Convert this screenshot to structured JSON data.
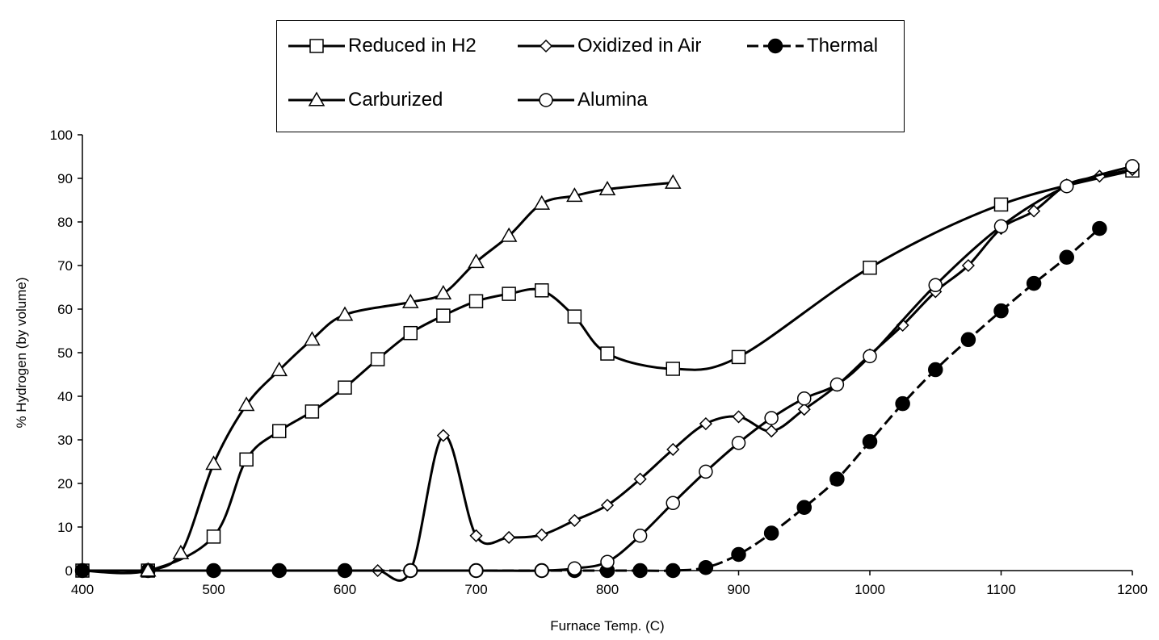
{
  "chart_data": {
    "type": "line",
    "title": "",
    "xlabel": "Furnace Temp. (C)",
    "ylabel": "% Hydrogen (by volume)",
    "xlim": [
      400,
      1200
    ],
    "ylim": [
      0,
      100
    ],
    "xticks": [
      400,
      500,
      600,
      700,
      800,
      900,
      1000,
      1100,
      1200
    ],
    "yticks": [
      0,
      10,
      20,
      30,
      40,
      50,
      60,
      70,
      80,
      90,
      100
    ],
    "grid": false,
    "legend_position": "top",
    "series": [
      {
        "name": "Reduced in H2",
        "marker": "square",
        "line": "solid",
        "color": "#000000",
        "x": [
          400,
          450,
          500,
          525,
          550,
          575,
          600,
          625,
          650,
          675,
          700,
          725,
          750,
          775,
          800,
          850,
          900,
          1000,
          1100,
          1200
        ],
        "y": [
          0,
          0,
          7.8,
          25.5,
          32,
          36.5,
          42,
          48.5,
          54.5,
          58.5,
          61.8,
          63.5,
          64.3,
          58.3,
          49.8,
          46.3,
          49,
          69.5,
          84,
          91.8
        ]
      },
      {
        "name": "Oxidized in Air",
        "marker": "diamond",
        "line": "solid",
        "color": "#000000",
        "x": [
          400,
          450,
          500,
          550,
          600,
          625,
          650,
          675,
          700,
          725,
          750,
          775,
          800,
          825,
          850,
          875,
          900,
          925,
          950,
          975,
          1000,
          1025,
          1050,
          1075,
          1100,
          1125,
          1150,
          1175,
          1200
        ],
        "y": [
          0,
          0,
          0,
          0,
          0,
          0,
          0,
          31,
          8,
          7.6,
          8.2,
          11.5,
          15,
          21,
          27.8,
          33.7,
          35.3,
          32,
          37,
          42.5,
          49.5,
          56.3,
          64,
          70,
          78.5,
          82.5,
          88.5,
          90.5,
          92
        ]
      },
      {
        "name": "Thermal",
        "marker": "filled-circle",
        "line": "dashed",
        "color": "#000000",
        "x": [
          400,
          450,
          500,
          550,
          600,
          650,
          700,
          750,
          775,
          800,
          825,
          850,
          875,
          900,
          925,
          950,
          975,
          1000,
          1025,
          1050,
          1075,
          1100,
          1125,
          1150,
          1175
        ],
        "y": [
          0,
          0,
          0,
          0,
          0,
          0,
          0,
          0,
          0,
          0,
          0,
          0,
          0.7,
          3.7,
          8.6,
          14.5,
          21,
          29.6,
          38.3,
          46.1,
          53,
          59.6,
          65.9,
          71.9,
          78.5
        ]
      },
      {
        "name": "Carburized",
        "marker": "triangle",
        "line": "solid",
        "color": "#000000",
        "x": [
          450,
          475,
          500,
          525,
          550,
          575,
          600,
          650,
          675,
          700,
          725,
          750,
          775,
          800,
          850
        ],
        "y": [
          0,
          4,
          24.5,
          38,
          46,
          53,
          58.7,
          61.6,
          63.6,
          70.8,
          76.8,
          84.2,
          86,
          87.5,
          89
        ]
      },
      {
        "name": "Alumina",
        "marker": "circle",
        "line": "solid",
        "color": "#000000",
        "x": [
          650,
          700,
          750,
          775,
          800,
          825,
          850,
          875,
          900,
          925,
          950,
          975,
          1000,
          1050,
          1100,
          1150,
          1200
        ],
        "y": [
          0,
          0,
          0,
          0.5,
          2,
          8,
          15.5,
          22.7,
          29.3,
          35,
          39.5,
          42.7,
          49.2,
          65.5,
          79,
          88.2,
          92.8
        ]
      }
    ]
  }
}
